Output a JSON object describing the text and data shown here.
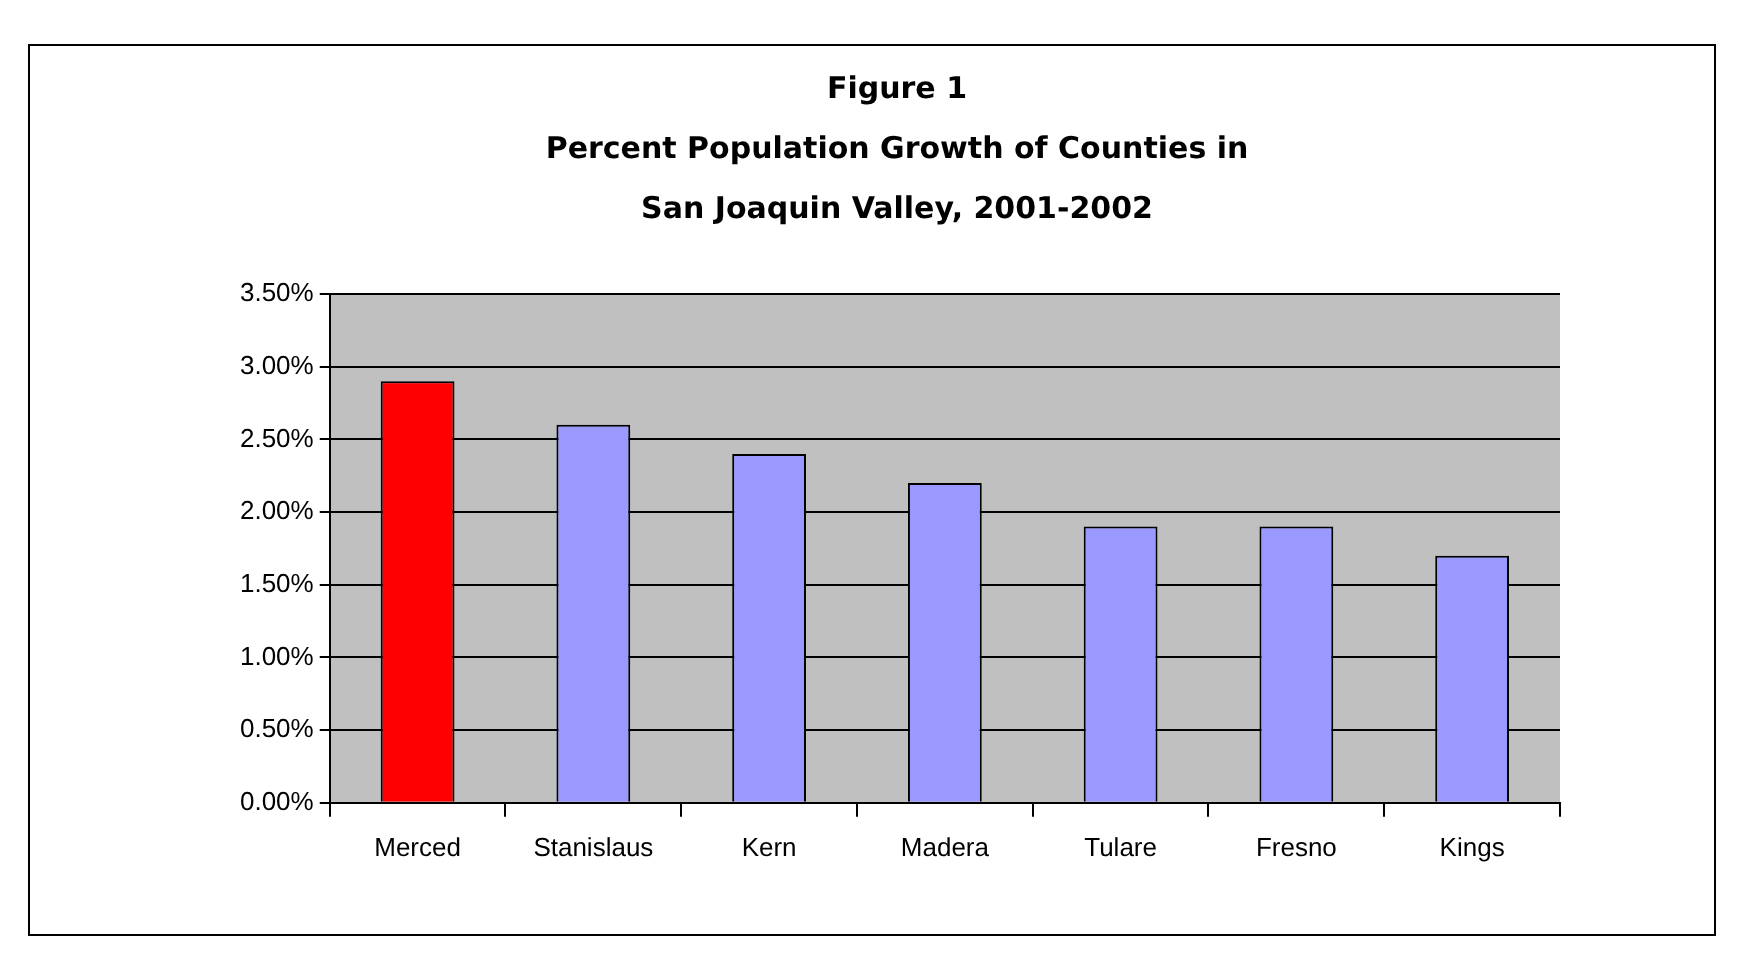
{
  "chart_data": {
    "type": "bar",
    "title": "Figure 1\nPercent Population Growth of Counties in\nSan Joaquin Valley, 2001-2002",
    "categories": [
      "Merced",
      "Stanislaus",
      "Kern",
      "Madera",
      "Tulare",
      "Fresno",
      "Kings"
    ],
    "values": [
      2.9,
      2.6,
      2.4,
      2.2,
      1.9,
      1.9,
      1.7
    ],
    "colors": [
      "#ff0000",
      "#9999ff",
      "#9999ff",
      "#9999ff",
      "#9999ff",
      "#9999ff",
      "#9999ff"
    ],
    "ylim": [
      0,
      3.5
    ],
    "yticks": [
      {
        "value": 0,
        "label": "0.00%"
      },
      {
        "value": 0.5,
        "label": "0.50%"
      },
      {
        "value": 1,
        "label": "1.00%"
      },
      {
        "value": 1.5,
        "label": "1.50%"
      },
      {
        "value": 2,
        "label": "2.00%"
      },
      {
        "value": 2.5,
        "label": "2.50%"
      },
      {
        "value": 3,
        "label": "3.00%"
      },
      {
        "value": 3.5,
        "label": "3.50%"
      }
    ],
    "grid": "y",
    "legend": false
  }
}
